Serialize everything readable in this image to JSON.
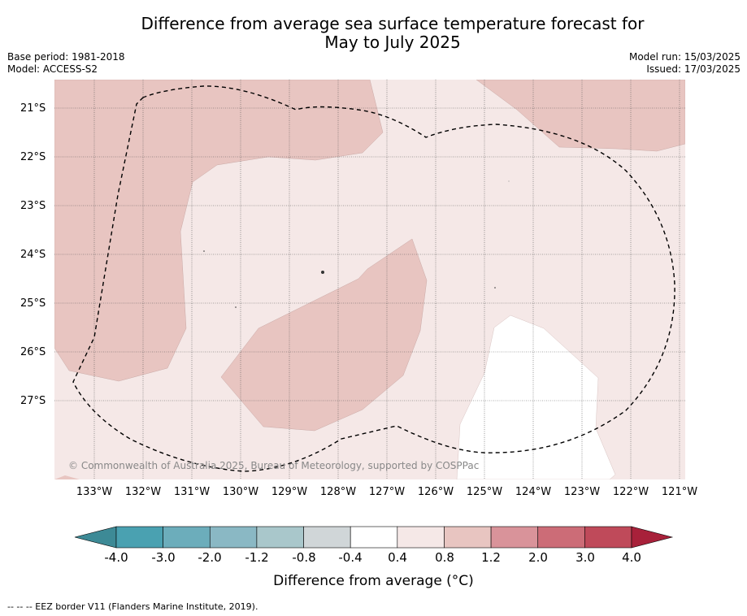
{
  "title_line1": "Difference from average sea surface temperature forecast for",
  "title_line2": "May to July 2025",
  "meta_left": {
    "base_period": "Base period: 1981-2018",
    "model": "Model: ACCESS-S2"
  },
  "meta_right": {
    "model_run": "Model run: 15/03/2025",
    "issued": "Issued: 17/03/2025"
  },
  "copyright": "© Commonwealth of Australia 2025, Bureau of Meteorology, supported by COSPPac",
  "lat_labels": [
    "21°S",
    "22°S",
    "23°S",
    "24°S",
    "25°S",
    "26°S",
    "27°S"
  ],
  "lon_labels": [
    "133°W",
    "132°W",
    "131°W",
    "130°W",
    "129°W",
    "128°W",
    "127°W",
    "126°W",
    "125°W",
    "124°W",
    "123°W",
    "122°W",
    "121°W"
  ],
  "colorbar": {
    "title": "Difference from average (°C)",
    "tick_labels": [
      "-4.0",
      "-3.0",
      "-2.0",
      "-1.2",
      "-0.8",
      "-0.4",
      "0.4",
      "0.8",
      "1.2",
      "2.0",
      "3.0",
      "4.0"
    ],
    "colors": [
      "#3d8a96",
      "#4aa1b1",
      "#6cadbb",
      "#8ab8c4",
      "#a9c7cb",
      "#d0d6d8",
      "#ffffff",
      "#f5e8e7",
      "#e8c5c1",
      "#d9939a",
      "#cc6c77",
      "#bf4a5a",
      "#a8213a"
    ]
  },
  "footnote": "--  --  -- EEZ border V11 (Flanders Marine Institute, 2019)."
}
